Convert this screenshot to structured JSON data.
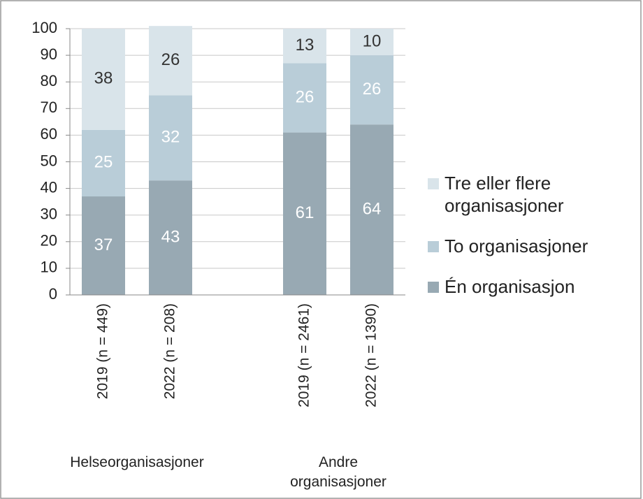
{
  "chart_data": {
    "type": "stacked_bar",
    "categories": [
      "2019 (n = 449)",
      "2022 (n = 208)",
      null,
      "2019 (n = 2461)",
      "2022 (n = 1390)"
    ],
    "groups": [
      "Helseorganisasjoner",
      "Andre organisasjoner"
    ],
    "series": [
      {
        "name": "Én organisasjon",
        "color": "#98a9b3",
        "label_color": "#ffffff",
        "values": [
          37,
          43,
          null,
          61,
          64
        ]
      },
      {
        "name": "To organisasjoner",
        "color": "#b9cdd8",
        "label_color": "#ffffff",
        "values": [
          25,
          32,
          null,
          26,
          26
        ]
      },
      {
        "name": "Tre eller flere organisasjoner",
        "color": "#d9e4ea",
        "label_color": "#333333",
        "values": [
          38,
          26,
          null,
          13,
          10
        ]
      }
    ],
    "ylim": [
      0,
      100
    ],
    "yticks": [
      0,
      10,
      20,
      30,
      40,
      50,
      60,
      70,
      80,
      90,
      100
    ],
    "grid": true,
    "legend": "right"
  }
}
